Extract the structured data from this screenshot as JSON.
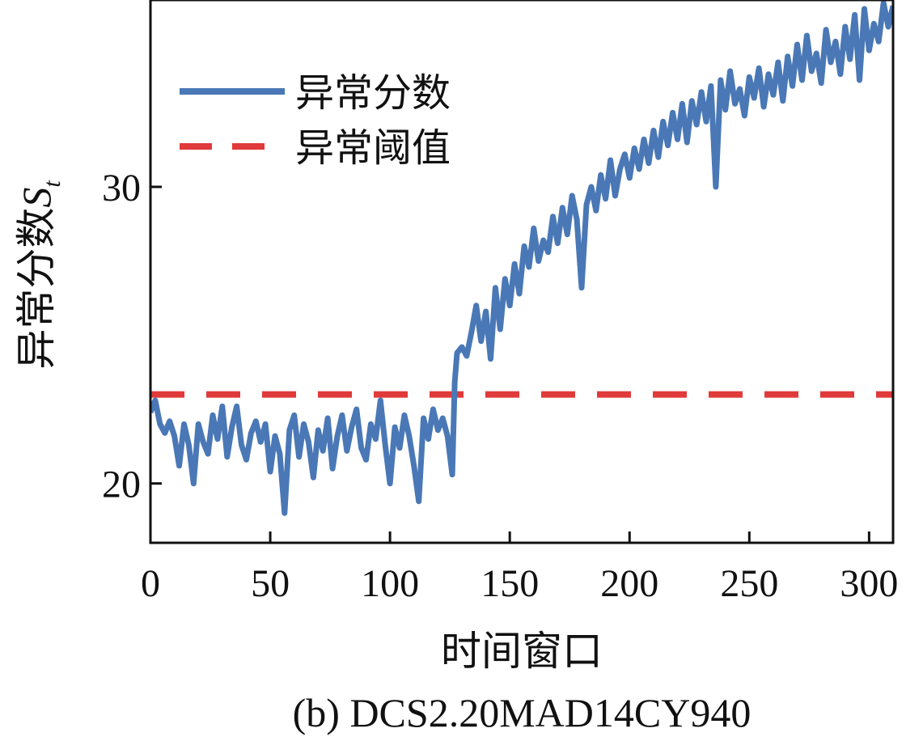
{
  "chart_data": {
    "type": "line",
    "xlabel": "时间窗口",
    "ylabel": "异常分数",
    "ylabel_symbol": "S",
    "ylabel_subscript": "t",
    "caption": "(b)  DCS2.20MAD14CY940",
    "xlim": [
      0,
      310
    ],
    "ylim": [
      18,
      36.3
    ],
    "xticks": [
      0,
      50,
      100,
      150,
      200,
      250,
      300
    ],
    "yticks": [
      20,
      30
    ],
    "legend_position": "top-left",
    "colors": {
      "score": "#4a78b6",
      "threshold": "#e03a3a"
    },
    "series": [
      {
        "name": "异常分数",
        "style": "solid",
        "points": [
          [
            0,
            22.4
          ],
          [
            2,
            22.8
          ],
          [
            4,
            22.0
          ],
          [
            6,
            21.7
          ],
          [
            8,
            22.1
          ],
          [
            10,
            21.6
          ],
          [
            12,
            20.6
          ],
          [
            14,
            22.0
          ],
          [
            16,
            21.3
          ],
          [
            18,
            20.0
          ],
          [
            20,
            22.0
          ],
          [
            22,
            21.4
          ],
          [
            24,
            21.0
          ],
          [
            26,
            22.3
          ],
          [
            28,
            21.5
          ],
          [
            30,
            22.6
          ],
          [
            32,
            20.9
          ],
          [
            34,
            21.9
          ],
          [
            36,
            22.6
          ],
          [
            38,
            21.3
          ],
          [
            40,
            20.8
          ],
          [
            42,
            21.7
          ],
          [
            44,
            22.1
          ],
          [
            46,
            21.4
          ],
          [
            48,
            22.0
          ],
          [
            50,
            20.4
          ],
          [
            52,
            21.6
          ],
          [
            54,
            21.0
          ],
          [
            56,
            19.0
          ],
          [
            58,
            21.8
          ],
          [
            60,
            22.3
          ],
          [
            62,
            20.9
          ],
          [
            64,
            22.0
          ],
          [
            66,
            21.4
          ],
          [
            68,
            20.2
          ],
          [
            70,
            21.8
          ],
          [
            72,
            21.1
          ],
          [
            74,
            22.2
          ],
          [
            76,
            20.5
          ],
          [
            78,
            21.6
          ],
          [
            80,
            22.3
          ],
          [
            82,
            21.1
          ],
          [
            84,
            21.9
          ],
          [
            86,
            22.5
          ],
          [
            88,
            21.2
          ],
          [
            90,
            20.8
          ],
          [
            92,
            22.0
          ],
          [
            94,
            21.5
          ],
          [
            96,
            22.8
          ],
          [
            98,
            21.3
          ],
          [
            100,
            20.0
          ],
          [
            102,
            21.9
          ],
          [
            104,
            21.2
          ],
          [
            106,
            22.3
          ],
          [
            108,
            21.6
          ],
          [
            110,
            20.6
          ],
          [
            112,
            19.4
          ],
          [
            114,
            22.2
          ],
          [
            116,
            21.5
          ],
          [
            118,
            22.5
          ],
          [
            120,
            21.8
          ],
          [
            122,
            22.2
          ],
          [
            124,
            21.6
          ],
          [
            126,
            20.3
          ],
          [
            127,
            23.4
          ],
          [
            128,
            24.4
          ],
          [
            130,
            24.6
          ],
          [
            132,
            24.3
          ],
          [
            134,
            25.1
          ],
          [
            136,
            26.0
          ],
          [
            138,
            24.8
          ],
          [
            140,
            25.8
          ],
          [
            142,
            24.2
          ],
          [
            144,
            26.6
          ],
          [
            146,
            25.2
          ],
          [
            148,
            26.9
          ],
          [
            150,
            26.0
          ],
          [
            152,
            27.4
          ],
          [
            154,
            26.4
          ],
          [
            156,
            28.0
          ],
          [
            158,
            27.3
          ],
          [
            160,
            28.6
          ],
          [
            162,
            27.5
          ],
          [
            164,
            28.2
          ],
          [
            166,
            27.8
          ],
          [
            168,
            29.0
          ],
          [
            170,
            28.1
          ],
          [
            172,
            29.3
          ],
          [
            174,
            28.4
          ],
          [
            176,
            29.7
          ],
          [
            178,
            28.9
          ],
          [
            180,
            26.6
          ],
          [
            182,
            29.4
          ],
          [
            184,
            30.0
          ],
          [
            186,
            29.2
          ],
          [
            188,
            30.4
          ],
          [
            190,
            29.6
          ],
          [
            192,
            30.9
          ],
          [
            194,
            29.7
          ],
          [
            196,
            30.6
          ],
          [
            198,
            31.1
          ],
          [
            200,
            30.3
          ],
          [
            202,
            31.3
          ],
          [
            204,
            30.6
          ],
          [
            206,
            31.6
          ],
          [
            208,
            30.8
          ],
          [
            210,
            31.9
          ],
          [
            212,
            31.0
          ],
          [
            214,
            32.2
          ],
          [
            216,
            31.4
          ],
          [
            218,
            32.5
          ],
          [
            220,
            31.6
          ],
          [
            222,
            32.8
          ],
          [
            224,
            31.5
          ],
          [
            226,
            32.9
          ],
          [
            228,
            32.1
          ],
          [
            230,
            33.2
          ],
          [
            232,
            32.2
          ],
          [
            234,
            33.4
          ],
          [
            236,
            30.0
          ],
          [
            238,
            33.6
          ],
          [
            240,
            32.6
          ],
          [
            242,
            33.9
          ],
          [
            244,
            32.8
          ],
          [
            246,
            33.3
          ],
          [
            248,
            32.4
          ],
          [
            250,
            33.7
          ],
          [
            252,
            33.0
          ],
          [
            254,
            34.0
          ],
          [
            256,
            32.7
          ],
          [
            258,
            33.8
          ],
          [
            260,
            33.1
          ],
          [
            262,
            34.2
          ],
          [
            264,
            32.9
          ],
          [
            266,
            34.4
          ],
          [
            268,
            33.4
          ],
          [
            270,
            34.8
          ],
          [
            272,
            33.6
          ],
          [
            274,
            35.1
          ],
          [
            276,
            33.9
          ],
          [
            278,
            34.5
          ],
          [
            280,
            33.5
          ],
          [
            282,
            35.3
          ],
          [
            284,
            34.2
          ],
          [
            286,
            34.9
          ],
          [
            288,
            33.8
          ],
          [
            290,
            35.4
          ],
          [
            292,
            34.3
          ],
          [
            294,
            35.8
          ],
          [
            296,
            33.6
          ],
          [
            298,
            36.0
          ],
          [
            300,
            34.6
          ],
          [
            302,
            35.5
          ],
          [
            304,
            34.9
          ],
          [
            306,
            36.2
          ],
          [
            308,
            35.4
          ],
          [
            310,
            36.1
          ]
        ]
      },
      {
        "name": "异常阈值",
        "style": "dashed",
        "value": 23.0
      }
    ]
  }
}
